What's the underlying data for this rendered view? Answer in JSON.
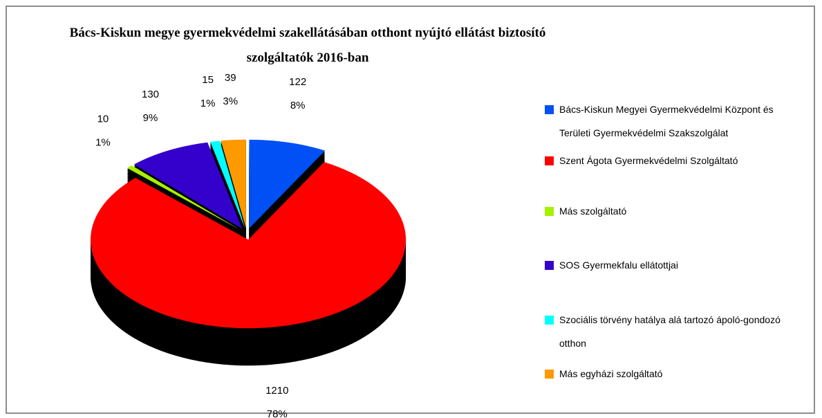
{
  "chart_data": {
    "type": "pie",
    "title": "Bács-Kiskun megye gyermekvédelmi szakellátásában otthont nyújtó ellátást biztosító szolgáltatók 2016-ban",
    "categories": [
      "Bács-Kiskun Megyei Gyermekvédelmi Központ és Területi Gyermekvédelmi Szakszolgálat",
      "Szent Ágota Gyermekvédelmi Szolgáltató",
      "Más szolgáltató",
      "SOS Gyermekfalu ellátottjai",
      "Szociális törvény hatálya alá tartozó ápoló-gondozó otthon",
      "Más egyházi szolgáltató"
    ],
    "values": [
      122,
      1210,
      10,
      130,
      15,
      39
    ],
    "percent_labels": [
      "8%",
      "78%",
      "1%",
      "9%",
      "1%",
      "3%"
    ],
    "colors": [
      "#0050f5",
      "#ff0000",
      "#a6f000",
      "#3300cc",
      "#00ffff",
      "#ff9900"
    ],
    "legend": "right"
  }
}
